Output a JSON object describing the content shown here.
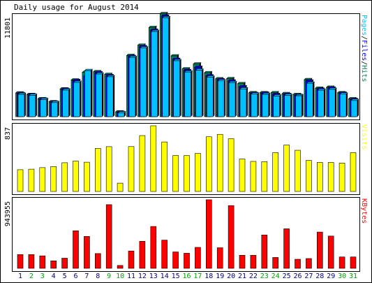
{
  "title": "Daily usage for August 2014",
  "colors": {
    "hits": "#00805c",
    "files": "#0000ff",
    "pages": "#00c0ff",
    "visits": "#ffff00",
    "kbytes": "#ff0000",
    "weekday_label": "#000080",
    "weekend_label": "#00a000",
    "background": "#ffffff",
    "frame": "#000000"
  },
  "chart_data": [
    {
      "type": "bar",
      "name": "pages-files-hits",
      "y_tick_label": "11801",
      "right_legend": [
        {
          "text": "Pages",
          "color": "#00c0ff"
        },
        {
          "text": "/",
          "color": "#000000"
        },
        {
          "text": "Files",
          "color": "#0000ff"
        },
        {
          "text": "/",
          "color": "#000000"
        },
        {
          "text": "Hits",
          "color": "#00805c"
        }
      ],
      "ylim": [
        0,
        11801
      ],
      "categories": [
        "1",
        "2",
        "3",
        "4",
        "5",
        "6",
        "7",
        "8",
        "9",
        "10",
        "11",
        "12",
        "13",
        "14",
        "15",
        "16",
        "17",
        "18",
        "19",
        "20",
        "21",
        "22",
        "23",
        "24",
        "25",
        "26",
        "27",
        "28",
        "29",
        "30",
        "31"
      ],
      "series": [
        {
          "name": "Hits",
          "values": [
            2780,
            2600,
            2100,
            1750,
            3250,
            4300,
            5200,
            5270,
            4950,
            560,
            7180,
            8380,
            10460,
            12080,
            7130,
            5600,
            6170,
            5150,
            4440,
            4450,
            3870,
            2800,
            2800,
            2800,
            2700,
            2600,
            4340,
            3340,
            3450,
            2800,
            2100
          ]
        },
        {
          "name": "Files",
          "values": [
            2700,
            2560,
            2060,
            1700,
            3200,
            4230,
            4760,
            5150,
            4800,
            500,
            7050,
            8200,
            10130,
            11800,
            6720,
            5400,
            5780,
            4780,
            4320,
            4180,
            3500,
            2720,
            2750,
            2600,
            2600,
            2500,
            4180,
            3220,
            3350,
            2750,
            2000
          ]
        },
        {
          "name": "Pages",
          "values": [
            2620,
            2500,
            2000,
            1650,
            3120,
            4020,
            5400,
            5000,
            4680,
            450,
            6950,
            8060,
            9990,
            11600,
            6560,
            5230,
            5450,
            4630,
            4200,
            4000,
            3250,
            2650,
            2620,
            2420,
            2500,
            2450,
            3920,
            3100,
            3200,
            2640,
            1900
          ]
        }
      ]
    },
    {
      "type": "bar",
      "name": "visits",
      "y_tick_label": "837",
      "right_legend": [
        {
          "text": "Visits",
          "color": "#ffff00"
        }
      ],
      "ylim": [
        0,
        837
      ],
      "categories": [
        "1",
        "2",
        "3",
        "4",
        "5",
        "6",
        "7",
        "8",
        "9",
        "10",
        "11",
        "12",
        "13",
        "14",
        "15",
        "16",
        "17",
        "18",
        "19",
        "20",
        "21",
        "22",
        "23",
        "24",
        "25",
        "26",
        "27",
        "28",
        "29",
        "30",
        "31"
      ],
      "series": [
        {
          "name": "Visits",
          "values": [
            277,
            284,
            304,
            318,
            366,
            387,
            373,
            549,
            571,
            106,
            572,
            712,
            837,
            631,
            458,
            457,
            485,
            697,
            728,
            672,
            414,
            383,
            380,
            495,
            592,
            525,
            396,
            370,
            370,
            362,
            495
          ]
        }
      ]
    },
    {
      "type": "bar",
      "name": "kbytes",
      "y_tick_label": "943955",
      "right_legend": [
        {
          "text": "KBytes",
          "color": "#ff0000"
        }
      ],
      "ylim": [
        0,
        943955
      ],
      "categories": [
        "1",
        "2",
        "3",
        "4",
        "5",
        "6",
        "7",
        "8",
        "9",
        "10",
        "11",
        "12",
        "13",
        "14",
        "15",
        "16",
        "17",
        "18",
        "19",
        "20",
        "21",
        "22",
        "23",
        "24",
        "25",
        "26",
        "27",
        "28",
        "29",
        "30",
        "31"
      ],
      "series": [
        {
          "name": "KBytes",
          "values": [
            190000,
            190000,
            172000,
            103000,
            140000,
            518000,
            440000,
            204000,
            878000,
            40000,
            239000,
            373000,
            577000,
            389000,
            226000,
            208000,
            289000,
            945000,
            284000,
            865000,
            180000,
            180000,
            460000,
            150000,
            545000,
            125000,
            135000,
            500000,
            445000,
            157000,
            157000
          ]
        }
      ]
    }
  ],
  "x_axis": {
    "labels": [
      "1",
      "2",
      "3",
      "4",
      "5",
      "6",
      "7",
      "8",
      "9",
      "10",
      "11",
      "12",
      "13",
      "14",
      "15",
      "16",
      "17",
      "18",
      "19",
      "20",
      "21",
      "22",
      "23",
      "24",
      "25",
      "26",
      "27",
      "28",
      "29",
      "30",
      "31"
    ],
    "weekend": [
      false,
      true,
      true,
      false,
      false,
      false,
      false,
      false,
      true,
      true,
      false,
      false,
      false,
      false,
      false,
      true,
      true,
      false,
      false,
      false,
      false,
      false,
      true,
      true,
      false,
      false,
      false,
      false,
      false,
      true,
      true
    ]
  }
}
